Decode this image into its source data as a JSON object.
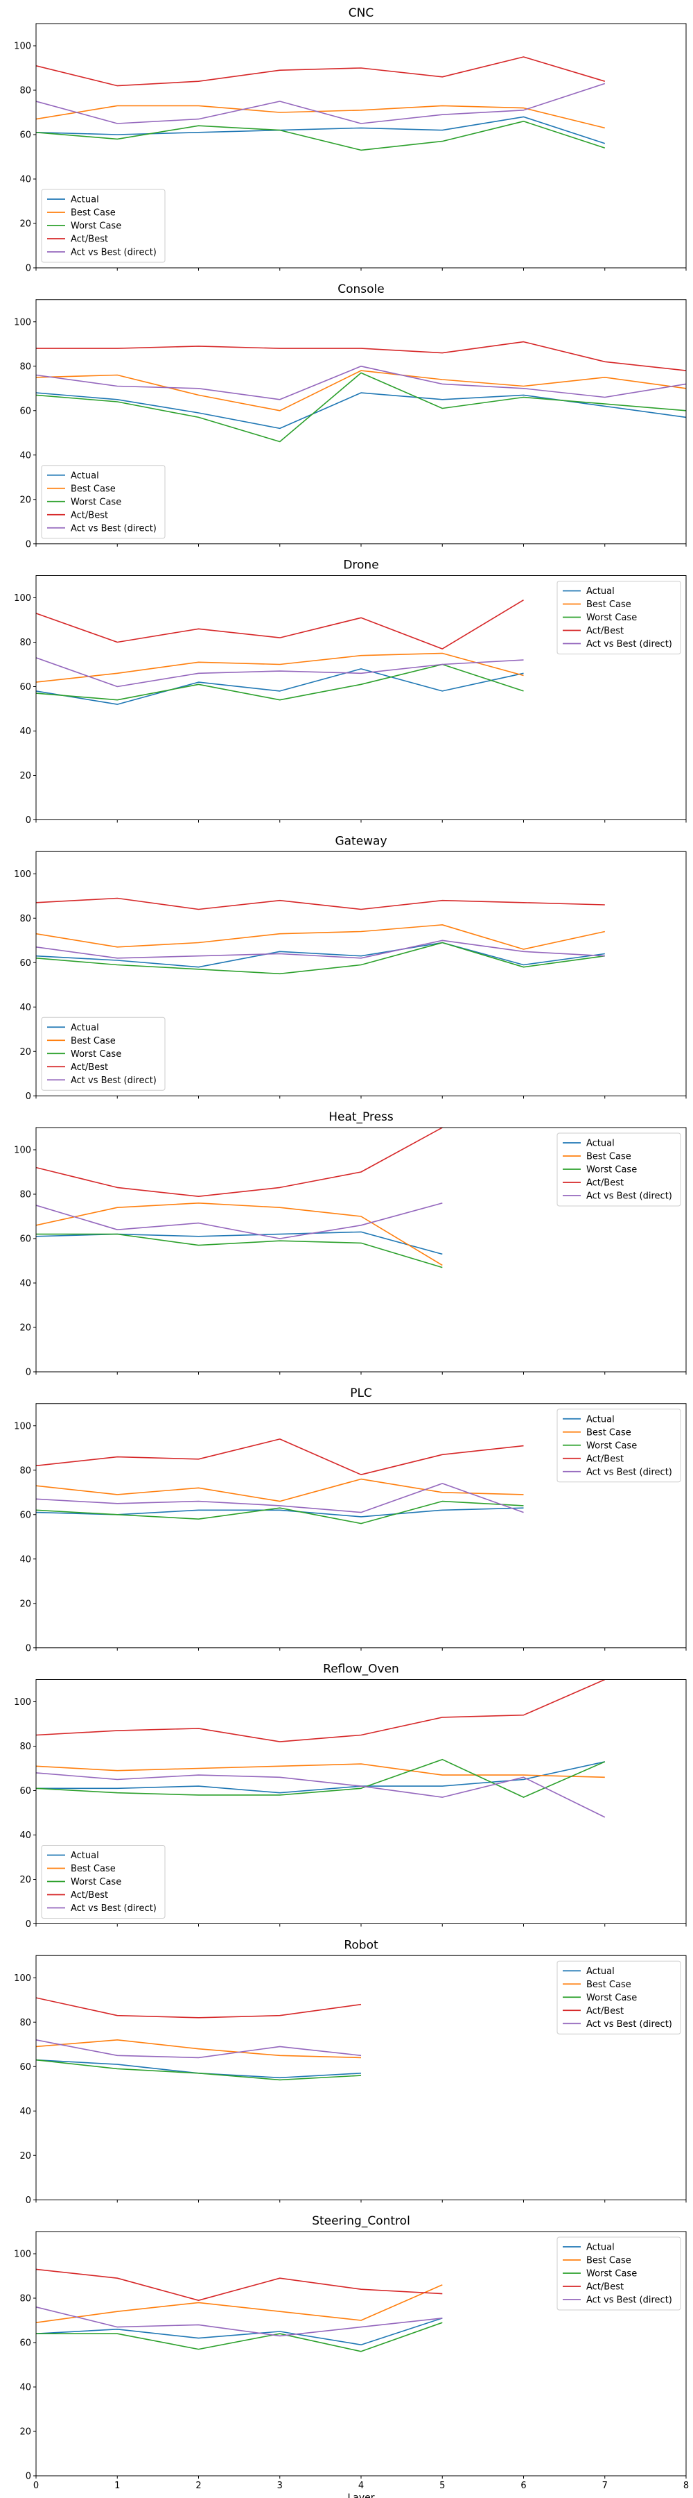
{
  "chart_data": {
    "type": "line",
    "xlabel": "Layer",
    "xlim": [
      0,
      8
    ],
    "ylim": [
      0,
      110
    ],
    "xticks": [
      0,
      1,
      2,
      3,
      4,
      5,
      6,
      7,
      8
    ],
    "yticks": [
      0,
      20,
      40,
      60,
      80,
      100
    ],
    "grid": false,
    "series_names": [
      "Actual",
      "Best Case",
      "Worst Case",
      "Act/Best",
      "Act vs Best (direct)"
    ],
    "colors": {
      "Actual": "#1f77b4",
      "Best Case": "#ff7f0e",
      "Worst Case": "#2ca02c",
      "Act/Best": "#d62728",
      "Act vs Best (direct)": "#9467bd"
    },
    "panels": [
      {
        "title": "CNC",
        "legend": "lower-left",
        "series": [
          {
            "name": "Actual",
            "x": [
              0,
              1,
              2,
              3,
              4,
              5,
              6,
              7
            ],
            "values": [
              61,
              60,
              61,
              62,
              63,
              62,
              68,
              56
            ]
          },
          {
            "name": "Best Case",
            "x": [
              0,
              1,
              2,
              3,
              4,
              5,
              6,
              7
            ],
            "values": [
              67,
              73,
              73,
              70,
              71,
              73,
              72,
              63
            ]
          },
          {
            "name": "Worst Case",
            "x": [
              0,
              1,
              2,
              3,
              4,
              5,
              6,
              7
            ],
            "values": [
              61,
              58,
              64,
              62,
              53,
              57,
              66,
              54
            ]
          },
          {
            "name": "Act/Best",
            "x": [
              0,
              1,
              2,
              3,
              4,
              5,
              6,
              7
            ],
            "values": [
              91,
              82,
              84,
              89,
              90,
              86,
              95,
              84
            ]
          },
          {
            "name": "Act vs Best (direct)",
            "x": [
              0,
              1,
              2,
              3,
              4,
              5,
              6,
              7
            ],
            "values": [
              75,
              65,
              67,
              75,
              65,
              69,
              71,
              83
            ]
          }
        ]
      },
      {
        "title": "Console",
        "legend": "lower-left",
        "series": [
          {
            "name": "Actual",
            "x": [
              0,
              1,
              2,
              3,
              4,
              5,
              6,
              7,
              8
            ],
            "values": [
              68,
              65,
              59,
              52,
              68,
              65,
              67,
              62,
              57
            ]
          },
          {
            "name": "Best Case",
            "x": [
              0,
              1,
              2,
              3,
              4,
              5,
              6,
              7,
              8
            ],
            "values": [
              75,
              76,
              67,
              60,
              78,
              74,
              71,
              75,
              70
            ]
          },
          {
            "name": "Worst Case",
            "x": [
              0,
              1,
              2,
              3,
              4,
              5,
              6,
              7,
              8
            ],
            "values": [
              67,
              64,
              57,
              46,
              77,
              61,
              66,
              63,
              60
            ]
          },
          {
            "name": "Act/Best",
            "x": [
              0,
              1,
              2,
              3,
              4,
              5,
              6,
              7,
              8
            ],
            "values": [
              88,
              88,
              89,
              88,
              88,
              86,
              91,
              82,
              78
            ]
          },
          {
            "name": "Act vs Best (direct)",
            "x": [
              0,
              1,
              2,
              3,
              4,
              5,
              6,
              7,
              8
            ],
            "values": [
              76,
              71,
              70,
              65,
              80,
              72,
              70,
              66,
              72
            ]
          }
        ]
      },
      {
        "title": "Drone",
        "legend": "upper-right",
        "series": [
          {
            "name": "Actual",
            "x": [
              0,
              1,
              2,
              3,
              4,
              5,
              6
            ],
            "values": [
              58,
              52,
              62,
              58,
              68,
              58,
              66
            ]
          },
          {
            "name": "Best Case",
            "x": [
              0,
              1,
              2,
              3,
              4,
              5,
              6
            ],
            "values": [
              62,
              66,
              71,
              70,
              74,
              75,
              65
            ]
          },
          {
            "name": "Worst Case",
            "x": [
              0,
              1,
              2,
              3,
              4,
              5,
              6
            ],
            "values": [
              57,
              54,
              61,
              54,
              61,
              70,
              58
            ]
          },
          {
            "name": "Act/Best",
            "x": [
              0,
              1,
              2,
              3,
              4,
              5,
              6
            ],
            "values": [
              93,
              80,
              86,
              82,
              91,
              77,
              99
            ]
          },
          {
            "name": "Act vs Best (direct)",
            "x": [
              0,
              1,
              2,
              3,
              4,
              5,
              6
            ],
            "values": [
              73,
              60,
              66,
              67,
              66,
              70,
              72
            ]
          }
        ]
      },
      {
        "title": "Gateway",
        "legend": "lower-left",
        "series": [
          {
            "name": "Actual",
            "x": [
              0,
              1,
              2,
              3,
              4,
              5,
              6,
              7
            ],
            "values": [
              63,
              61,
              58,
              65,
              63,
              69,
              59,
              64
            ]
          },
          {
            "name": "Best Case",
            "x": [
              0,
              1,
              2,
              3,
              4,
              5,
              6,
              7
            ],
            "values": [
              73,
              67,
              69,
              73,
              74,
              77,
              66,
              74
            ]
          },
          {
            "name": "Worst Case",
            "x": [
              0,
              1,
              2,
              3,
              4,
              5,
              6,
              7
            ],
            "values": [
              62,
              59,
              57,
              55,
              59,
              69,
              58,
              63
            ]
          },
          {
            "name": "Act/Best",
            "x": [
              0,
              1,
              2,
              3,
              4,
              5,
              6,
              7
            ],
            "values": [
              87,
              89,
              84,
              88,
              84,
              88,
              87,
              86
            ]
          },
          {
            "name": "Act vs Best (direct)",
            "x": [
              0,
              1,
              2,
              3,
              4,
              5,
              6,
              7
            ],
            "values": [
              67,
              62,
              63,
              64,
              62,
              70,
              65,
              63
            ]
          }
        ]
      },
      {
        "title": "Heat_Press",
        "legend": "upper-right",
        "series": [
          {
            "name": "Actual",
            "x": [
              0,
              1,
              2,
              3,
              4,
              5
            ],
            "values": [
              61,
              62,
              61,
              62,
              63,
              53
            ]
          },
          {
            "name": "Best Case",
            "x": [
              0,
              1,
              2,
              3,
              4,
              5
            ],
            "values": [
              66,
              74,
              76,
              74,
              70,
              48
            ]
          },
          {
            "name": "Worst Case",
            "x": [
              0,
              1,
              2,
              3,
              4,
              5
            ],
            "values": [
              62,
              62,
              57,
              59,
              58,
              47
            ]
          },
          {
            "name": "Act/Best",
            "x": [
              0,
              1,
              2,
              3,
              4,
              5
            ],
            "values": [
              92,
              83,
              79,
              83,
              90,
              110
            ]
          },
          {
            "name": "Act vs Best (direct)",
            "x": [
              0,
              1,
              2,
              3,
              4,
              5
            ],
            "values": [
              75,
              64,
              67,
              60,
              66,
              76
            ]
          }
        ]
      },
      {
        "title": "PLC",
        "legend": "upper-right",
        "series": [
          {
            "name": "Actual",
            "x": [
              0,
              1,
              2,
              3,
              4,
              5,
              6
            ],
            "values": [
              61,
              60,
              62,
              62,
              59,
              62,
              63
            ]
          },
          {
            "name": "Best Case",
            "x": [
              0,
              1,
              2,
              3,
              4,
              5,
              6
            ],
            "values": [
              73,
              69,
              72,
              66,
              76,
              70,
              69
            ]
          },
          {
            "name": "Worst Case",
            "x": [
              0,
              1,
              2,
              3,
              4,
              5,
              6
            ],
            "values": [
              62,
              60,
              58,
              63,
              56,
              66,
              64
            ]
          },
          {
            "name": "Act/Best",
            "x": [
              0,
              1,
              2,
              3,
              4,
              5,
              6
            ],
            "values": [
              82,
              86,
              85,
              94,
              78,
              87,
              91
            ]
          },
          {
            "name": "Act vs Best (direct)",
            "x": [
              0,
              1,
              2,
              3,
              4,
              5,
              6
            ],
            "values": [
              67,
              65,
              66,
              64,
              61,
              74,
              61
            ]
          }
        ]
      },
      {
        "title": "Reflow_Oven",
        "legend": "lower-left",
        "series": [
          {
            "name": "Actual",
            "x": [
              0,
              1,
              2,
              3,
              4,
              5,
              6,
              7
            ],
            "values": [
              61,
              61,
              62,
              59,
              62,
              62,
              65,
              73
            ]
          },
          {
            "name": "Best Case",
            "x": [
              0,
              1,
              2,
              3,
              4,
              5,
              6,
              7
            ],
            "values": [
              71,
              69,
              70,
              71,
              72,
              67,
              67,
              66
            ]
          },
          {
            "name": "Worst Case",
            "x": [
              0,
              1,
              2,
              3,
              4,
              5,
              6,
              7
            ],
            "values": [
              61,
              59,
              58,
              58,
              61,
              74,
              57,
              73
            ]
          },
          {
            "name": "Act/Best",
            "x": [
              0,
              1,
              2,
              3,
              4,
              5,
              6,
              7
            ],
            "values": [
              85,
              87,
              88,
              82,
              85,
              93,
              94,
              110
            ]
          },
          {
            "name": "Act vs Best (direct)",
            "x": [
              0,
              1,
              2,
              3,
              4,
              5,
              6,
              7
            ],
            "values": [
              68,
              65,
              67,
              66,
              62,
              57,
              66,
              48
            ]
          }
        ]
      },
      {
        "title": "Robot",
        "legend": "upper-right",
        "series": [
          {
            "name": "Actual",
            "x": [
              0,
              1,
              2,
              3,
              4
            ],
            "values": [
              63,
              61,
              57,
              55,
              57
            ]
          },
          {
            "name": "Best Case",
            "x": [
              0,
              1,
              2,
              3,
              4
            ],
            "values": [
              69,
              72,
              68,
              65,
              64
            ]
          },
          {
            "name": "Worst Case",
            "x": [
              0,
              1,
              2,
              3,
              4
            ],
            "values": [
              63,
              59,
              57,
              54,
              56
            ]
          },
          {
            "name": "Act/Best",
            "x": [
              0,
              1,
              2,
              3,
              4
            ],
            "values": [
              91,
              83,
              82,
              83,
              88
            ]
          },
          {
            "name": "Act vs Best (direct)",
            "x": [
              0,
              1,
              2,
              3,
              4
            ],
            "values": [
              72,
              65,
              64,
              69,
              65
            ]
          }
        ]
      },
      {
        "title": "Steering_Control",
        "legend": "upper-right",
        "series": [
          {
            "name": "Actual",
            "x": [
              0,
              1,
              2,
              3,
              4,
              5
            ],
            "values": [
              64,
              66,
              62,
              65,
              59,
              71
            ]
          },
          {
            "name": "Best Case",
            "x": [
              0,
              1,
              2,
              3,
              4,
              5
            ],
            "values": [
              69,
              74,
              78,
              74,
              70,
              86
            ]
          },
          {
            "name": "Worst Case",
            "x": [
              0,
              1,
              2,
              3,
              4,
              5
            ],
            "values": [
              64,
              64,
              57,
              64,
              56,
              69
            ]
          },
          {
            "name": "Act/Best",
            "x": [
              0,
              1,
              2,
              3,
              4,
              5
            ],
            "values": [
              93,
              89,
              79,
              89,
              84,
              82
            ]
          },
          {
            "name": "Act vs Best (direct)",
            "x": [
              0,
              1,
              2,
              3,
              4,
              5
            ],
            "values": [
              76,
              67,
              68,
              63,
              67,
              71
            ]
          }
        ]
      }
    ]
  }
}
